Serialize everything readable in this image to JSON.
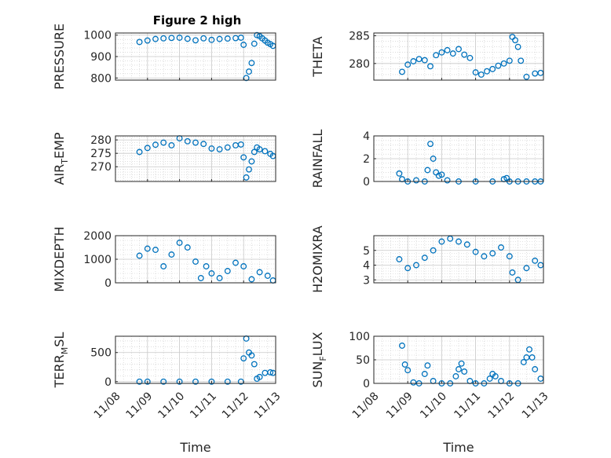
{
  "figure": {
    "title": "Figure 2 high",
    "marker_color": "#0072bd",
    "axes_color": "#262626",
    "grid_color": "#c8c8c8"
  },
  "chart_data": [
    {
      "type": "scatter",
      "ylabel": "PRESSURE",
      "ylim": [
        790,
        1010
      ],
      "yticks": [
        800,
        900,
        1000
      ],
      "xlim": [
        "11/08",
        "11/13"
      ],
      "xticks": [],
      "grid": true,
      "x": [
        "11/08 18:00",
        "11/09 00:00",
        "11/09 06:00",
        "11/09 12:00",
        "11/09 18:00",
        "11/10 00:00",
        "11/10 06:00",
        "11/10 12:00",
        "11/10 18:00",
        "11/11 00:00",
        "11/11 06:00",
        "11/11 12:00",
        "11/11 18:00",
        "11/11 22:00",
        "11/12 00:00",
        "11/12 02:00",
        "11/12 04:00",
        "11/12 06:00",
        "11/12 08:00",
        "11/12 10:00",
        "11/12 12:00",
        "11/12 14:00",
        "11/12 16:00",
        "11/12 18:00",
        "11/12 20:00",
        "11/12 22:00"
      ],
      "y": [
        968,
        975,
        982,
        985,
        987,
        988,
        983,
        976,
        985,
        978,
        982,
        984,
        986,
        988,
        955,
        800,
        830,
        870,
        960,
        1000,
        995,
        985,
        975,
        965,
        958,
        950
      ]
    },
    {
      "type": "scatter",
      "ylabel": "THETA",
      "ylim": [
        277,
        285.5
      ],
      "yticks": [
        280,
        285
      ],
      "xlim": [
        "11/08",
        "11/13"
      ],
      "xticks": [],
      "grid": true,
      "x": [
        "11/08 20:00",
        "11/09 00:00",
        "11/09 04:00",
        "11/09 08:00",
        "11/09 12:00",
        "11/09 16:00",
        "11/09 20:00",
        "11/10 00:00",
        "11/10 04:00",
        "11/10 08:00",
        "11/10 12:00",
        "11/10 16:00",
        "11/10 20:00",
        "11/11 00:00",
        "11/11 04:00",
        "11/11 08:00",
        "11/11 12:00",
        "11/11 16:00",
        "11/11 20:00",
        "11/12 00:00",
        "11/12 02:00",
        "11/12 04:00",
        "11/12 06:00",
        "11/12 08:00",
        "11/12 12:00",
        "11/12 18:00",
        "11/12 22:00"
      ],
      "y": [
        278.5,
        279.8,
        280.4,
        280.8,
        280.6,
        279.5,
        281.5,
        282.0,
        282.4,
        281.8,
        282.6,
        281.6,
        281.0,
        278.4,
        278.0,
        278.6,
        279.0,
        279.6,
        280.0,
        280.5,
        284.8,
        284.2,
        283.0,
        280.5,
        277.6,
        278.2,
        278.3
      ]
    },
    {
      "type": "scatter",
      "ylabel": "AIR_TEMP",
      "ylim": [
        264.5,
        281.5
      ],
      "yticks": [
        270,
        275,
        280
      ],
      "xlim": [
        "11/08",
        "11/13"
      ],
      "xticks": [],
      "grid": true,
      "x": [
        "11/08 18:00",
        "11/09 00:00",
        "11/09 06:00",
        "11/09 12:00",
        "11/09 18:00",
        "11/10 00:00",
        "11/10 06:00",
        "11/10 12:00",
        "11/10 18:00",
        "11/11 00:00",
        "11/11 06:00",
        "11/11 12:00",
        "11/11 18:00",
        "11/11 22:00",
        "11/12 00:00",
        "11/12 02:00",
        "11/12 04:00",
        "11/12 06:00",
        "11/12 08:00",
        "11/12 10:00",
        "11/12 12:00",
        "11/12 16:00",
        "11/12 20:00",
        "11/12 22:00"
      ],
      "y": [
        275.5,
        277.0,
        278.2,
        279.0,
        278.0,
        280.6,
        279.5,
        279.0,
        278.5,
        276.8,
        276.5,
        277.2,
        278.0,
        278.3,
        273.5,
        266.0,
        269.0,
        272.0,
        275.5,
        277.2,
        276.5,
        275.8,
        274.8,
        274.0
      ]
    },
    {
      "type": "scatter",
      "ylabel": "RAINFALL",
      "ylim": [
        0,
        4
      ],
      "yticks": [
        0,
        2,
        4
      ],
      "xlim": [
        "11/08",
        "11/13"
      ],
      "xticks": [],
      "grid": true,
      "x": [
        "11/08 18:00",
        "11/08 20:00",
        "11/09 00:00",
        "11/09 06:00",
        "11/09 12:00",
        "11/09 14:00",
        "11/09 16:00",
        "11/09 18:00",
        "11/09 20:00",
        "11/09 22:00",
        "11/10 00:00",
        "11/10 04:00",
        "11/10 12:00",
        "11/11 00:00",
        "11/11 12:00",
        "11/11 20:00",
        "11/11 22:00",
        "11/12 00:00",
        "11/12 06:00",
        "11/12 12:00",
        "11/12 18:00",
        "11/12 22:00"
      ],
      "y": [
        0.7,
        0.2,
        0.0,
        0.1,
        0.0,
        1.0,
        3.3,
        2.0,
        0.8,
        0.5,
        0.6,
        0.1,
        0.0,
        0.0,
        0.0,
        0.2,
        0.3,
        0.0,
        0.0,
        0.0,
        0.0,
        0.0
      ]
    },
    {
      "type": "scatter",
      "ylabel": "MIXDEPTH",
      "ylim": [
        0,
        2000
      ],
      "yticks": [
        0,
        1000,
        2000
      ],
      "xlim": [
        "11/08",
        "11/13"
      ],
      "xticks": [],
      "grid": true,
      "x": [
        "11/08 18:00",
        "11/09 00:00",
        "11/09 06:00",
        "11/09 12:00",
        "11/09 18:00",
        "11/10 00:00",
        "11/10 06:00",
        "11/10 12:00",
        "11/10 16:00",
        "11/10 20:00",
        "11/11 00:00",
        "11/11 06:00",
        "11/11 12:00",
        "11/11 18:00",
        "11/12 00:00",
        "11/12 06:00",
        "11/12 12:00",
        "11/12 18:00",
        "11/12 22:00"
      ],
      "y": [
        1150,
        1450,
        1400,
        700,
        1200,
        1700,
        1500,
        900,
        200,
        700,
        400,
        200,
        500,
        850,
        700,
        150,
        450,
        300,
        100
      ]
    },
    {
      "type": "scatter",
      "ylabel": "H2OMIXRA",
      "ylim": [
        2.8,
        6.0
      ],
      "yticks": [
        3,
        4,
        5
      ],
      "xlim": [
        "11/08",
        "11/13"
      ],
      "xticks": [],
      "grid": true,
      "x": [
        "11/08 18:00",
        "11/09 00:00",
        "11/09 06:00",
        "11/09 12:00",
        "11/09 18:00",
        "11/10 00:00",
        "11/10 06:00",
        "11/10 12:00",
        "11/10 18:00",
        "11/11 00:00",
        "11/11 06:00",
        "11/11 12:00",
        "11/11 18:00",
        "11/12 00:00",
        "11/12 02:00",
        "11/12 06:00",
        "11/12 12:00",
        "11/12 18:00",
        "11/12 22:00"
      ],
      "y": [
        4.4,
        3.8,
        4.0,
        4.5,
        5.0,
        5.6,
        5.8,
        5.6,
        5.4,
        4.9,
        4.6,
        4.8,
        5.2,
        4.6,
        3.5,
        3.0,
        3.8,
        4.3,
        4.0
      ]
    },
    {
      "type": "scatter",
      "ylabel": "TERR_MSL",
      "ylim": [
        -30,
        780
      ],
      "yticks": [
        0,
        500
      ],
      "xlim": [
        "11/08",
        "11/13"
      ],
      "xticks": [
        "11/08",
        "11/09",
        "11/10",
        "11/11",
        "11/12",
        "11/13"
      ],
      "xlabel": "Time",
      "grid": true,
      "x": [
        "11/08 18:00",
        "11/09 00:00",
        "11/09 12:00",
        "11/10 00:00",
        "11/10 12:00",
        "11/11 00:00",
        "11/11 12:00",
        "11/11 22:00",
        "11/12 00:00",
        "11/12 02:00",
        "11/12 04:00",
        "11/12 06:00",
        "11/12 08:00",
        "11/12 10:00",
        "11/12 12:00",
        "11/12 16:00",
        "11/12 20:00",
        "11/12 22:00"
      ],
      "y": [
        0,
        0,
        0,
        0,
        0,
        0,
        0,
        0,
        400,
        740,
        500,
        450,
        300,
        50,
        80,
        150,
        160,
        150
      ]
    },
    {
      "type": "scatter",
      "ylabel": "SUN_FLUX",
      "ylim": [
        0,
        100
      ],
      "yticks": [
        0,
        50,
        100
      ],
      "xlim": [
        "11/08",
        "11/13"
      ],
      "xticks": [
        "11/08",
        "11/09",
        "11/10",
        "11/11",
        "11/12",
        "11/13"
      ],
      "xlabel": "Time",
      "grid": true,
      "x": [
        "11/08 20:00",
        "11/08 22:00",
        "11/09 00:00",
        "11/09 04:00",
        "11/09 08:00",
        "11/09 12:00",
        "11/09 14:00",
        "11/09 18:00",
        "11/10 00:00",
        "11/10 06:00",
        "11/10 10:00",
        "11/10 12:00",
        "11/10 14:00",
        "11/10 16:00",
        "11/10 20:00",
        "11/11 00:00",
        "11/11 06:00",
        "11/11 10:00",
        "11/11 12:00",
        "11/11 14:00",
        "11/11 18:00",
        "11/12 00:00",
        "11/12 06:00",
        "11/12 10:00",
        "11/12 12:00",
        "11/12 14:00",
        "11/12 16:00",
        "11/12 18:00",
        "11/12 22:00"
      ],
      "y": [
        80,
        40,
        28,
        2,
        0,
        20,
        38,
        5,
        0,
        0,
        15,
        30,
        42,
        25,
        5,
        0,
        0,
        10,
        20,
        15,
        5,
        0,
        0,
        45,
        55,
        72,
        55,
        30,
        10
      ]
    }
  ]
}
